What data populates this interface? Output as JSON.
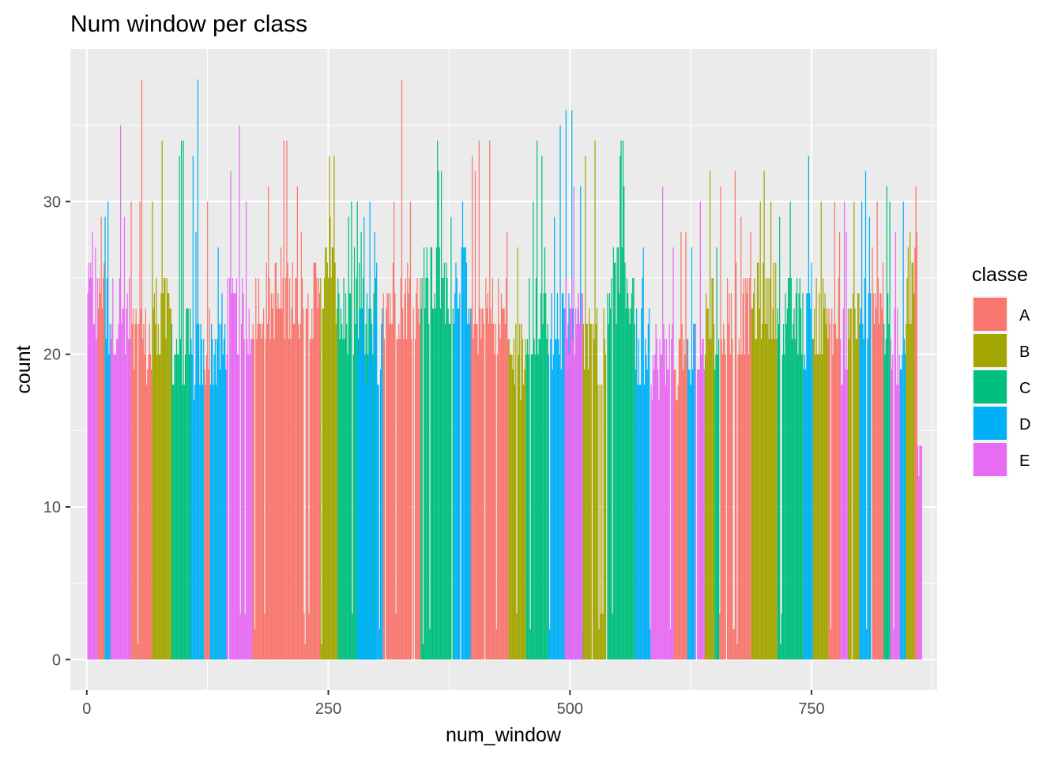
{
  "chart_data": {
    "type": "bar",
    "title": "Num window per class",
    "xlabel": "num_window",
    "ylabel": "count",
    "xlim": [
      -17,
      880
    ],
    "ylim": [
      -2,
      40
    ],
    "x_ticks": [
      0,
      250,
      500,
      750
    ],
    "y_ticks": [
      0,
      10,
      20,
      30
    ],
    "grid": true,
    "legend": {
      "title": "classe",
      "position": "right",
      "entries": [
        {
          "name": "A",
          "color": "#F8766D"
        },
        {
          "name": "B",
          "color": "#A3A500"
        },
        {
          "name": "C",
          "color": "#00BF7D"
        },
        {
          "name": "D",
          "color": "#00B0F6"
        },
        {
          "name": "E",
          "color": "#E76BF3"
        }
      ]
    },
    "segments": [
      {
        "classe": "E",
        "x_start": 1,
        "x_end": 12,
        "base": 21,
        "peak": 28
      },
      {
        "classe": "A",
        "x_start": 12,
        "x_end": 19,
        "base": 22,
        "peak": 29
      },
      {
        "classe": "D",
        "x_start": 19,
        "x_end": 25,
        "base": 20,
        "peak": 30
      },
      {
        "classe": "E",
        "x_start": 25,
        "x_end": 46,
        "base": 20,
        "peak": 35
      },
      {
        "classe": "A",
        "x_start": 46,
        "x_end": 68,
        "base": 18,
        "peak": 38
      },
      {
        "classe": "B",
        "x_start": 68,
        "x_end": 88,
        "base": 20,
        "peak": 34
      },
      {
        "classe": "C",
        "x_start": 88,
        "x_end": 108,
        "base": 18,
        "peak": 34
      },
      {
        "classe": "D",
        "x_start": 108,
        "x_end": 122,
        "base": 17,
        "peak": 38
      },
      {
        "classe": "A",
        "x_start": 122,
        "x_end": 128,
        "base": 18,
        "peak": 30
      },
      {
        "classe": "D",
        "x_start": 128,
        "x_end": 145,
        "base": 18,
        "peak": 27
      },
      {
        "classe": "E",
        "x_start": 145,
        "x_end": 172,
        "base": 20,
        "peak": 35
      },
      {
        "classe": "A",
        "x_start": 172,
        "x_end": 242,
        "base": 21,
        "peak": 34
      },
      {
        "classe": "B",
        "x_start": 242,
        "x_end": 260,
        "base": 22,
        "peak": 33
      },
      {
        "classe": "C",
        "x_start": 260,
        "x_end": 300,
        "base": 20,
        "peak": 30
      },
      {
        "classe": "D",
        "x_start": 280,
        "x_end": 307,
        "base": 18,
        "peak": 30
      },
      {
        "classe": "A",
        "x_start": 307,
        "x_end": 346,
        "base": 21,
        "peak": 38
      },
      {
        "classe": "C",
        "x_start": 346,
        "x_end": 380,
        "base": 22,
        "peak": 34
      },
      {
        "classe": "D",
        "x_start": 380,
        "x_end": 398,
        "base": 22,
        "peak": 30
      },
      {
        "classe": "A",
        "x_start": 398,
        "x_end": 437,
        "base": 20,
        "peak": 34
      },
      {
        "classe": "B",
        "x_start": 437,
        "x_end": 455,
        "base": 17,
        "peak": 27
      },
      {
        "classe": "C",
        "x_start": 455,
        "x_end": 478,
        "base": 20,
        "peak": 34
      },
      {
        "classe": "D",
        "x_start": 478,
        "x_end": 514,
        "base": 19,
        "peak": 36
      },
      {
        "classe": "E",
        "x_start": 495,
        "x_end": 514,
        "base": 20,
        "peak": 31
      },
      {
        "classe": "B",
        "x_start": 514,
        "x_end": 538,
        "base": 18,
        "peak": 34
      },
      {
        "classe": "C",
        "x_start": 538,
        "x_end": 568,
        "base": 22,
        "peak": 34
      },
      {
        "classe": "D",
        "x_start": 568,
        "x_end": 584,
        "base": 18,
        "peak": 27
      },
      {
        "classe": "E",
        "x_start": 584,
        "x_end": 608,
        "base": 17,
        "peak": 31
      },
      {
        "classe": "A",
        "x_start": 608,
        "x_end": 622,
        "base": 17,
        "peak": 28
      },
      {
        "classe": "D",
        "x_start": 622,
        "x_end": 630,
        "base": 17,
        "peak": 27
      },
      {
        "classe": "E",
        "x_start": 630,
        "x_end": 640,
        "base": 18,
        "peak": 30
      },
      {
        "classe": "B",
        "x_start": 640,
        "x_end": 650,
        "base": 20,
        "peak": 32
      },
      {
        "classe": "C",
        "x_start": 650,
        "x_end": 655,
        "base": 18,
        "peak": 27
      },
      {
        "classe": "A",
        "x_start": 655,
        "x_end": 688,
        "base": 20,
        "peak": 32
      },
      {
        "classe": "B",
        "x_start": 688,
        "x_end": 715,
        "base": 21,
        "peak": 32
      },
      {
        "classe": "C",
        "x_start": 715,
        "x_end": 742,
        "base": 20,
        "peak": 30
      },
      {
        "classe": "D",
        "x_start": 742,
        "x_end": 752,
        "base": 19,
        "peak": 33
      },
      {
        "classe": "B",
        "x_start": 752,
        "x_end": 768,
        "base": 20,
        "peak": 30
      },
      {
        "classe": "A",
        "x_start": 768,
        "x_end": 780,
        "base": 20,
        "peak": 30
      },
      {
        "classe": "E",
        "x_start": 780,
        "x_end": 788,
        "base": 18,
        "peak": 30
      },
      {
        "classe": "B",
        "x_start": 788,
        "x_end": 800,
        "base": 20,
        "peak": 30
      },
      {
        "classe": "D",
        "x_start": 800,
        "x_end": 812,
        "base": 20,
        "peak": 32
      },
      {
        "classe": "A",
        "x_start": 812,
        "x_end": 825,
        "base": 22,
        "peak": 30
      },
      {
        "classe": "C",
        "x_start": 825,
        "x_end": 832,
        "base": 19,
        "peak": 31
      },
      {
        "classe": "E",
        "x_start": 832,
        "x_end": 842,
        "base": 18,
        "peak": 28
      },
      {
        "classe": "D",
        "x_start": 842,
        "x_end": 848,
        "base": 18,
        "peak": 30
      },
      {
        "classe": "B",
        "x_start": 848,
        "x_end": 857,
        "base": 22,
        "peak": 28
      },
      {
        "classe": "A",
        "x_start": 857,
        "x_end": 860,
        "base": 24,
        "peak": 31
      },
      {
        "classe": "E",
        "x_start": 860,
        "x_end": 865,
        "base": 12,
        "peak": 14
      }
    ]
  }
}
